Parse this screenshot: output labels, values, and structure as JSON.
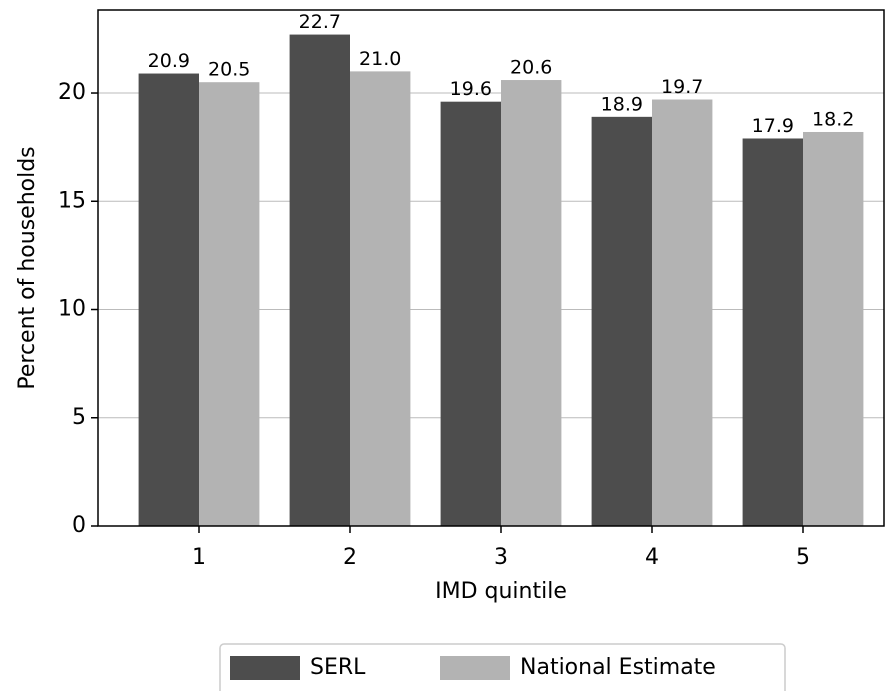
{
  "chart_data": {
    "type": "bar",
    "x_label": "IMD quintile",
    "y_label": "Percent of households",
    "categories": [
      "1",
      "2",
      "3",
      "4",
      "5"
    ],
    "series": [
      {
        "name": "SERL",
        "color": "#4d4d4d",
        "values": [
          20.9,
          22.7,
          19.6,
          18.9,
          17.9
        ]
      },
      {
        "name": "National Estimate",
        "color": "#b3b3b3",
        "values": [
          20.5,
          21.0,
          20.6,
          19.7,
          18.2
        ],
        "value_labels": [
          "20.5",
          "21.0",
          "20.6",
          "19.7",
          "18.2"
        ]
      }
    ],
    "ylim": [
      0,
      23.835
    ],
    "yticks": [
      0,
      5,
      10,
      15,
      20
    ],
    "legend": "bottom"
  }
}
